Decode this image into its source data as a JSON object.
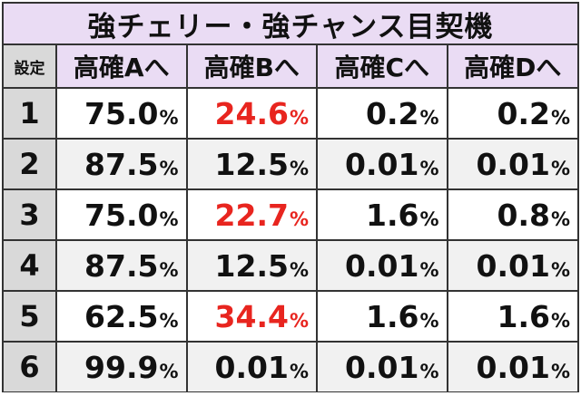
{
  "title": "強チェリー・強チャンス目契機",
  "header": {
    "setting": "設定",
    "columns": [
      "高確Aへ",
      "高確Bへ",
      "高確Cへ",
      "高確Dへ"
    ]
  },
  "unit": "%",
  "highlight_color": "#e8251f",
  "rows": [
    {
      "setting": "1",
      "values": [
        "75.0",
        "24.6",
        "0.2",
        "0.2"
      ],
      "highlight": [
        false,
        true,
        false,
        false
      ]
    },
    {
      "setting": "2",
      "values": [
        "87.5",
        "12.5",
        "0.01",
        "0.01"
      ],
      "highlight": [
        false,
        false,
        false,
        false
      ]
    },
    {
      "setting": "3",
      "values": [
        "75.0",
        "22.7",
        "1.6",
        "0.8"
      ],
      "highlight": [
        false,
        true,
        false,
        false
      ]
    },
    {
      "setting": "4",
      "values": [
        "87.5",
        "12.5",
        "0.01",
        "0.01"
      ],
      "highlight": [
        false,
        false,
        false,
        false
      ]
    },
    {
      "setting": "5",
      "values": [
        "62.5",
        "34.4",
        "1.6",
        "1.6"
      ],
      "highlight": [
        false,
        true,
        false,
        false
      ]
    },
    {
      "setting": "6",
      "values": [
        "99.9",
        "0.01",
        "0.01",
        "0.01"
      ],
      "highlight": [
        false,
        false,
        false,
        false
      ]
    }
  ]
}
